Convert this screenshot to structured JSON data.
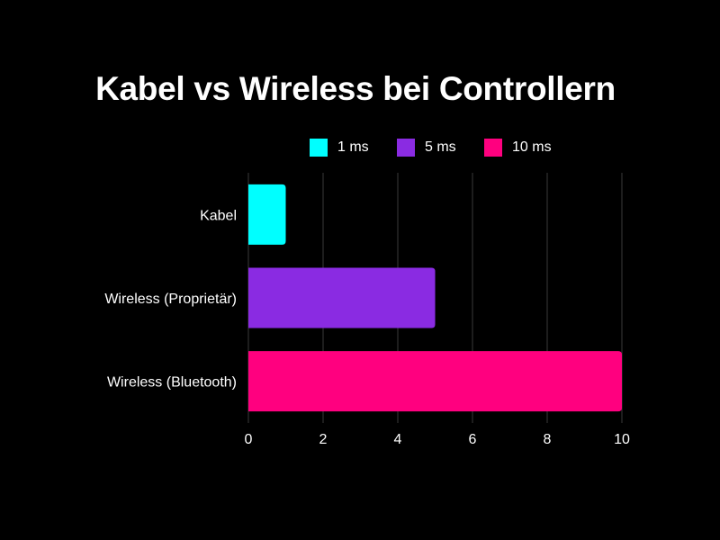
{
  "chart_data": {
    "type": "bar",
    "orientation": "horizontal",
    "title": "Kabel vs Wireless bei Controllern",
    "categories": [
      "Kabel",
      "Wireless (Proprietär)",
      "Wireless (Bluetooth)"
    ],
    "values": [
      1,
      5,
      10
    ],
    "bar_colors": [
      "#00FFFF",
      "#8A2BE2",
      "#FF007F"
    ],
    "legend": [
      {
        "label": "1 ms",
        "color": "#00FFFF"
      },
      {
        "label": "5 ms",
        "color": "#8A2BE2"
      },
      {
        "label": "10 ms",
        "color": "#FF007F"
      }
    ],
    "legend_position": "top",
    "xlim": [
      0,
      10
    ],
    "x_ticks": [
      0,
      2,
      4,
      6,
      8,
      10
    ],
    "xlabel": "",
    "ylabel": "",
    "grid": "vertical",
    "background": "#000000"
  }
}
